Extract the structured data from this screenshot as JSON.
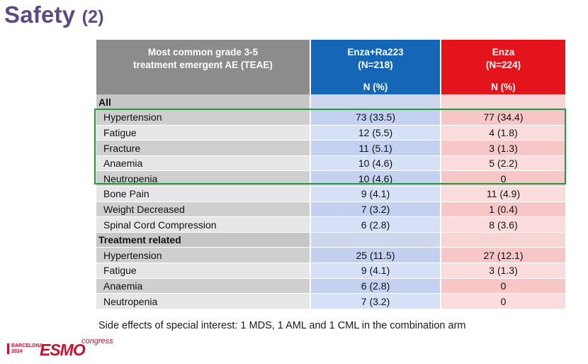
{
  "title": {
    "main": "Safety",
    "sub": "(2)"
  },
  "table": {
    "header": {
      "ae_line1": "Most common grade 3-5",
      "ae_line2": "treatment emergent AE (TEAE)",
      "combo_line1": "Enza+Ra223",
      "combo_line2": "(N=218)",
      "mono_line1": "Enza",
      "mono_line2": "(N=224)",
      "unit_combo": "N (%)",
      "unit_mono": "N (%)"
    },
    "sections": [
      {
        "label": "All",
        "rows": [
          {
            "ae": "Hypertension",
            "combo": "73 (33.5)",
            "mono": "77 (34.4)"
          },
          {
            "ae": "Fatigue",
            "combo": "12 (5.5)",
            "mono": "4 (1.8)"
          },
          {
            "ae": "Fracture",
            "combo": "11 (5.1)",
            "mono": "3 (1.3)"
          },
          {
            "ae": "Anaemia",
            "combo": "10 (4.6)",
            "mono": "5 (2.2)"
          },
          {
            "ae": "Neutropenia",
            "combo": "10 (4.6)",
            "mono": "0"
          },
          {
            "ae": "Bone Pain",
            "combo": "9 (4.1)",
            "mono": "11 (4.9)"
          },
          {
            "ae": "Weight Decreased",
            "combo": "7 (3.2)",
            "mono": "1 (0.4)"
          },
          {
            "ae": "Spinal Cord Compression",
            "combo": "6 (2.8)",
            "mono": "8 (3.6)"
          }
        ]
      },
      {
        "label": "Treatment related",
        "rows": [
          {
            "ae": "Hypertension",
            "combo": "25 (11.5)",
            "mono": "27 (12.1)"
          },
          {
            "ae": "Fatigue",
            "combo": "9 (4.1)",
            "mono": "3 (1.3)"
          },
          {
            "ae": "Anaemia",
            "combo": "6 (2.8)",
            "mono": "0"
          },
          {
            "ae": "Neutropenia",
            "combo": "7 (3.2)",
            "mono": "0"
          }
        ]
      }
    ]
  },
  "footnote": "Side effects of special interest: 1 MDS, 1 AML and 1 CML in the combination arm",
  "logo": {
    "city_line1": "BARCELONA",
    "city_line2": "2024",
    "brand": "ESMO",
    "suffix": "congress"
  },
  "colors": {
    "title": "#5a4a85",
    "combo_header": "#1666b8",
    "mono_header": "#e4141d",
    "ae_header": "#8c8c8c",
    "highlight": "#1f9a3c"
  }
}
